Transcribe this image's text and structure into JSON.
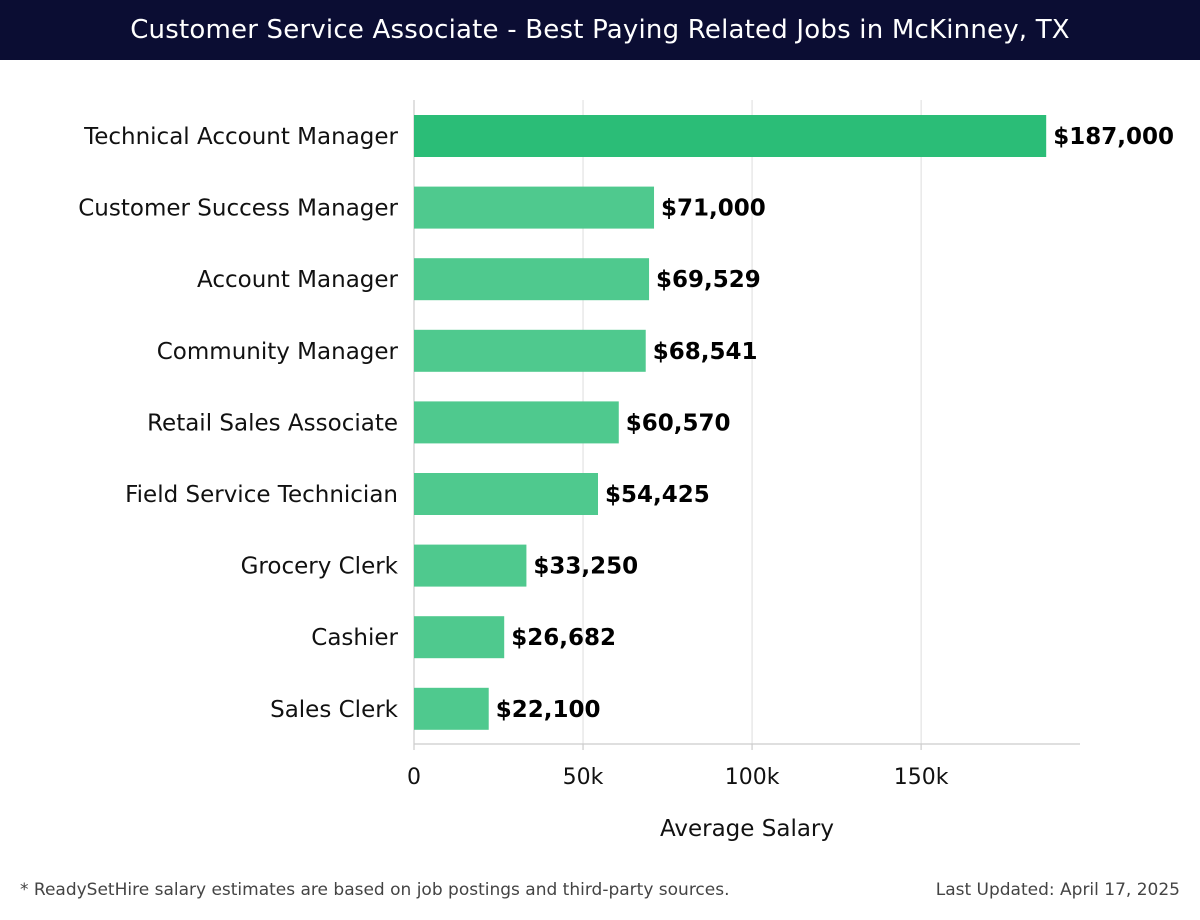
{
  "header": {
    "title": "Customer Service Associate - Best Paying Related Jobs in McKinney, TX"
  },
  "footer": {
    "note": "* ReadySetHire salary estimates are based on job postings and third-party sources.",
    "updated": "Last Updated: April 17, 2025"
  },
  "colors": {
    "header_bg": "#0b0d33",
    "top_bar": "#2bbd77",
    "bar": "#4fc98e",
    "grid": "#dddddd",
    "axis": "#cccccc"
  },
  "chart_data": {
    "type": "bar",
    "orientation": "horizontal",
    "title": "",
    "xlabel": "Average Salary",
    "ylabel": "",
    "xlim": [
      0,
      197000
    ],
    "xticks": [
      0,
      50000,
      100000,
      150000
    ],
    "xtick_labels": [
      "0",
      "50k",
      "100k",
      "150k"
    ],
    "grid": "vertical",
    "categories": [
      "Technical Account Manager",
      "Customer Success Manager",
      "Account Manager",
      "Community Manager",
      "Retail Sales Associate",
      "Field Service Technician",
      "Grocery Clerk",
      "Cashier",
      "Sales Clerk"
    ],
    "values": [
      187000,
      71000,
      69529,
      68541,
      60570,
      54425,
      33250,
      26682,
      22100
    ],
    "value_labels": [
      "$187,000",
      "$71,000",
      "$69,529",
      "$68,541",
      "$60,570",
      "$54,425",
      "$33,250",
      "$26,682",
      "$22,100"
    ]
  }
}
